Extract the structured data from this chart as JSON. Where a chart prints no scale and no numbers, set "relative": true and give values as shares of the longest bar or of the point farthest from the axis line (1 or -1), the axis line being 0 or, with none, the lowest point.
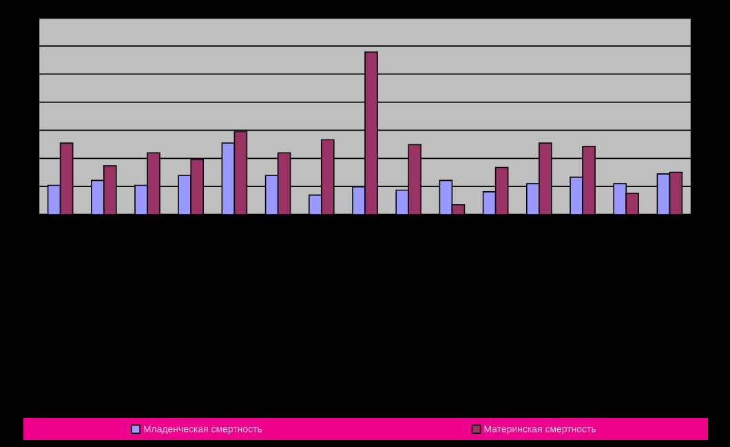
{
  "chart_data": {
    "type": "bar",
    "relative": true,
    "grid": "y",
    "legend": "bottom",
    "categories": [
      null,
      null,
      null,
      null,
      null,
      null,
      null,
      null,
      null,
      null,
      null,
      null,
      null,
      null,
      null
    ],
    "series": [
      {
        "name": "Младенческая смертность",
        "color": "#9999ff",
        "values": [
          0.18,
          0.21,
          0.18,
          0.24,
          0.44,
          0.24,
          0.12,
          0.17,
          0.15,
          0.21,
          0.14,
          0.19,
          0.23,
          0.19,
          0.25
        ]
      },
      {
        "name": "Материнская смертность",
        "color": "#993366",
        "values": [
          0.44,
          0.3,
          0.38,
          0.34,
          0.51,
          0.38,
          0.46,
          1,
          0.43,
          0.06,
          0.29,
          0.44,
          0.42,
          0.13,
          0.26
        ]
      }
    ]
  }
}
